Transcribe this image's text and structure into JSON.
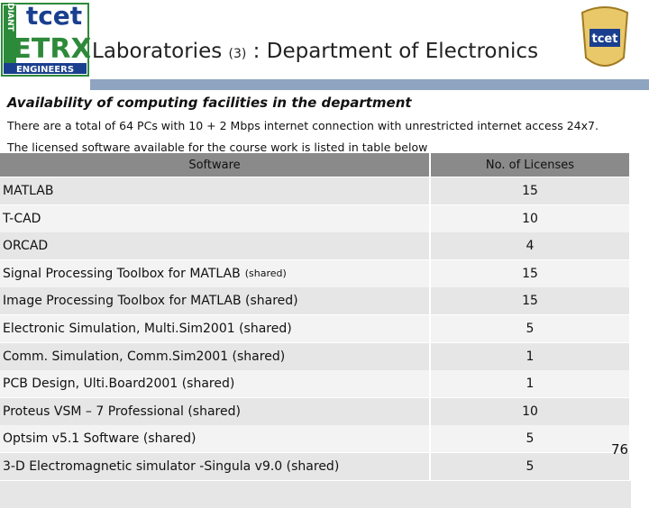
{
  "logo": {
    "name": "tcet",
    "side": "RADIANT",
    "main": "ETRX",
    "bottom": "ENGINEERS"
  },
  "crest": "tcet",
  "header": {
    "title": [
      "Laboratories",
      "(3)",
      ": Department of Electronics"
    ]
  },
  "subtitle": "Availability of computing facilities in the department",
  "paragraph": [
    "There are a total of 64 PCs with 10 + 2 Mbps internet connection with unrestricted internet access 24x7.",
    "The licensed software available for the course work is listed in table below"
  ],
  "table": {
    "columns": [
      "Software",
      "No. of Licenses"
    ],
    "rows": [
      [
        [
          "MATLAB"
        ],
        15
      ],
      [
        [
          "T-CAD"
        ],
        10
      ],
      [
        [
          "ORCAD"
        ],
        4
      ],
      [
        [
          "Signal Processing Toolbox for MATLAB",
          "(shared)"
        ],
        15
      ],
      [
        [
          "Image Processing Toolbox for MATLAB (shared)"
        ],
        15
      ],
      [
        [
          "Electronic Simulation, Multi.Sim2001 (shared)"
        ],
        5
      ],
      [
        [
          "Comm. Simulation, Comm.Sim2001 (shared)"
        ],
        1
      ],
      [
        [
          "PCB Design, Ulti.Board2001 (shared)"
        ],
        1
      ],
      [
        [
          "Proteus VSM – 7 Professional (shared)"
        ],
        10
      ],
      [
        [
          "Optsim v5.1 Software (shared)"
        ],
        5
      ],
      [
        [
          "3-D Electromagnetic simulator -Singula v9.0 (shared)"
        ],
        5
      ]
    ]
  },
  "page_number": 76
}
